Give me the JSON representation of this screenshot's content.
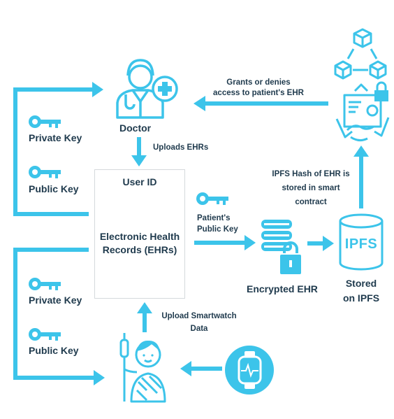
{
  "doctor": {
    "label": "Doctor"
  },
  "ehr_box": {
    "user_id": "User ID",
    "ehr_line1": "Electronic Health",
    "ehr_line2": "Records (EHRs)"
  },
  "keys": {
    "top_private": "Private Key",
    "top_public": "Public Key",
    "bottom_private": "Private Key",
    "bottom_public": "Public Key"
  },
  "arrows": {
    "uploads": "Uploads EHRs",
    "grants_line1": "Grants or denies",
    "grants_line2": "access to patient's EHR",
    "patients_line1": "Patient's",
    "patients_line2": "Public Key",
    "ipfs_hash_line1": "IPFS Hash of EHR is",
    "ipfs_hash_line2": "stored in smart",
    "ipfs_hash_line3": "contract",
    "smartwatch_line1": "Upload Smartwatch",
    "smartwatch_line2": "Data"
  },
  "encrypted": {
    "label": "Encrypted EHR"
  },
  "ipfs": {
    "logo": "IPFS",
    "stored_line1": "Stored",
    "stored_line2": "on IPFS"
  },
  "colors": {
    "accent": "#3cc4ea",
    "text": "#1f3a4d",
    "white": "#ffffff"
  }
}
